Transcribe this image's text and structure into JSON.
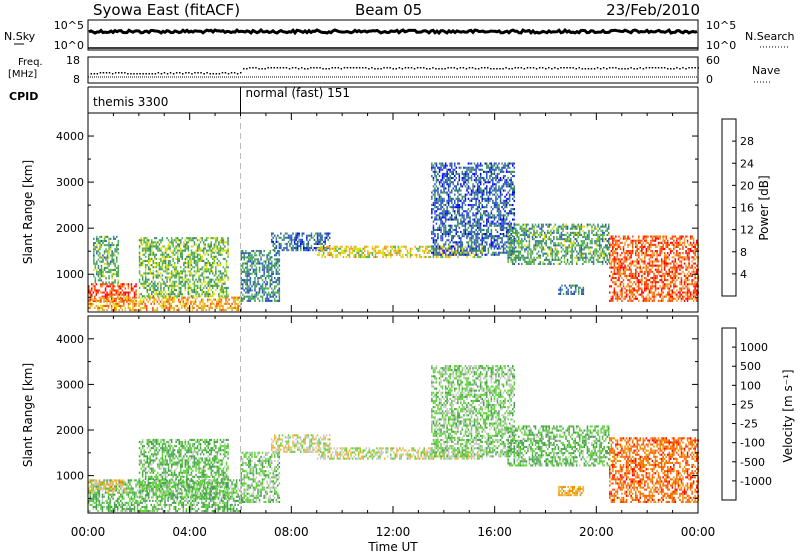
{
  "header": {
    "site": "Syowa East (fitACF)",
    "beam": "Beam 05",
    "date": "23/Feb/2010"
  },
  "nsky": {
    "label": "N.Sky",
    "right_label": "N.Search",
    "ticks_left": [
      "10^5",
      "10^0"
    ],
    "ticks_right": [
      "10^5",
      "10^0"
    ]
  },
  "freq": {
    "label_line1": "Freq.",
    "label_line2": "[MHz]",
    "ticks_left": [
      "18",
      "8"
    ],
    "ticks_right": [
      "60",
      "0"
    ],
    "right_label": "Nave"
  },
  "cpid": {
    "label": "CPID",
    "segments": [
      {
        "name": "themis 3300",
        "start_hour": 0
      },
      {
        "name": "normal (fast) 151",
        "start_hour": 6
      }
    ]
  },
  "xaxis": {
    "title": "Time UT",
    "tick_labels": [
      "00:00",
      "04:00",
      "08:00",
      "12:00",
      "16:00",
      "20:00",
      "00:00"
    ],
    "range_hours": [
      0,
      24
    ]
  },
  "yaxis": {
    "title": "Slant Range [km]",
    "tick_labels": [
      "1000",
      "2000",
      "3000",
      "4000"
    ],
    "range_km": [
      180,
      4500
    ]
  },
  "power_scale": {
    "label": "Power [dB]",
    "tick_labels": [
      "4",
      "8",
      "12",
      "16",
      "20",
      "24",
      "28"
    ],
    "colors": [
      "#0000ff",
      "#2850c8",
      "#3c8c64",
      "#50b450",
      "#dcdc00",
      "#f0a028",
      "#ff5000",
      "#ff0000"
    ]
  },
  "velocity_scale": {
    "label": "Velocity [m s⁻¹]",
    "tick_labels": [
      "1000",
      "500",
      "100",
      "25",
      "-25",
      "-100",
      "-500",
      "-1000"
    ],
    "colors": [
      "#2850c8",
      "#2e7864",
      "#46a050",
      "#64d23c",
      "#c8c8c8",
      "#f0b428",
      "#f08c00",
      "#ff5a00",
      "#ff0000"
    ]
  },
  "chart_data": [
    {
      "type": "heatmap",
      "panel": "power",
      "x_range_hours": [
        0,
        24
      ],
      "y_range_km": [
        180,
        4500
      ],
      "colorbar": {
        "label": "Power [dB]",
        "range": [
          0,
          32
        ]
      },
      "regions": [
        {
          "t0": 0.0,
          "t1": 1.9,
          "r0": 400,
          "r1": 800,
          "value": 27
        },
        {
          "t0": 0.0,
          "t1": 6.0,
          "r0": 200,
          "r1": 500,
          "value": 22
        },
        {
          "t0": 0.2,
          "t1": 1.2,
          "r0": 800,
          "r1": 1800,
          "value": 12
        },
        {
          "t0": 2.0,
          "t1": 5.5,
          "r0": 500,
          "r1": 1800,
          "value": 14
        },
        {
          "t0": 6.0,
          "t1": 7.5,
          "r0": 400,
          "r1": 1500,
          "value": 10
        },
        {
          "t0": 7.2,
          "t1": 9.5,
          "r0": 1500,
          "r1": 1900,
          "value": 8
        },
        {
          "t0": 9.0,
          "t1": 15.5,
          "r0": 1350,
          "r1": 1600,
          "value": 19
        },
        {
          "t0": 13.5,
          "t1": 16.8,
          "r0": 1400,
          "r1": 3400,
          "value": 7
        },
        {
          "t0": 16.5,
          "t1": 20.5,
          "r0": 1200,
          "r1": 2100,
          "value": 12
        },
        {
          "t0": 18.5,
          "t1": 19.5,
          "r0": 550,
          "r1": 750,
          "value": 9
        },
        {
          "t0": 20.5,
          "t1": 24.0,
          "r0": 400,
          "r1": 1800,
          "value": 26
        }
      ]
    },
    {
      "type": "heatmap",
      "panel": "velocity",
      "x_range_hours": [
        0,
        24
      ],
      "y_range_km": [
        180,
        4500
      ],
      "colorbar": {
        "label": "Velocity [m s⁻¹]",
        "range": [
          -1000,
          1000
        ]
      },
      "regions": [
        {
          "t0": 0.0,
          "t1": 6.0,
          "r0": 200,
          "r1": 900,
          "value": -300
        },
        {
          "t0": 0.0,
          "t1": 1.5,
          "r0": 600,
          "r1": 900,
          "value": 200
        },
        {
          "t0": 2.0,
          "t1": 5.5,
          "r0": 500,
          "r1": 1800,
          "value": -300
        },
        {
          "t0": 6.0,
          "t1": 7.5,
          "r0": 400,
          "r1": 1500,
          "value": -200
        },
        {
          "t0": 7.2,
          "t1": 9.5,
          "r0": 1500,
          "r1": 1900,
          "value": 0
        },
        {
          "t0": 9.0,
          "t1": 15.5,
          "r0": 1350,
          "r1": 1600,
          "value": 0
        },
        {
          "t0": 13.5,
          "t1": 16.8,
          "r0": 1400,
          "r1": 3400,
          "value": -200
        },
        {
          "t0": 16.5,
          "t1": 20.5,
          "r0": 1200,
          "r1": 2100,
          "value": -300
        },
        {
          "t0": 18.5,
          "t1": 19.5,
          "r0": 550,
          "r1": 750,
          "value": 300
        },
        {
          "t0": 20.5,
          "t1": 24.0,
          "r0": 400,
          "r1": 1800,
          "value": 600
        }
      ]
    }
  ]
}
